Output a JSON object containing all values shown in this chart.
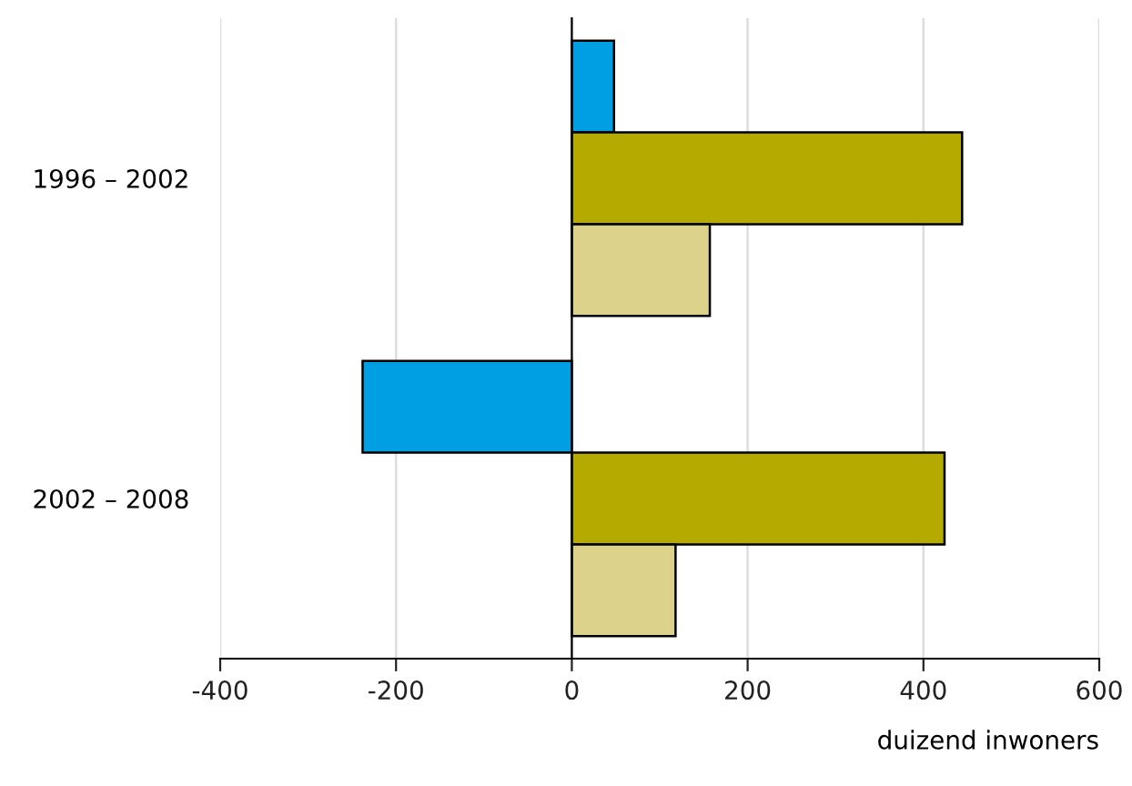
{
  "chart_data": {
    "type": "bar",
    "orientation": "horizontal",
    "xlabel": "duizend inwoners",
    "categories": [
      "1996 – 2002",
      "2002 – 2008"
    ],
    "series": [
      {
        "color": "#009fe3",
        "values": [
          48,
          -238
        ]
      },
      {
        "color": "#b5ab00",
        "values": [
          444,
          424
        ]
      },
      {
        "color": "#dcd28c",
        "values": [
          157,
          118
        ]
      }
    ],
    "xlim": [
      -400,
      600
    ],
    "xticks": [
      -400,
      -200,
      0,
      200,
      400,
      600
    ],
    "grid": "x",
    "legend": false
  }
}
